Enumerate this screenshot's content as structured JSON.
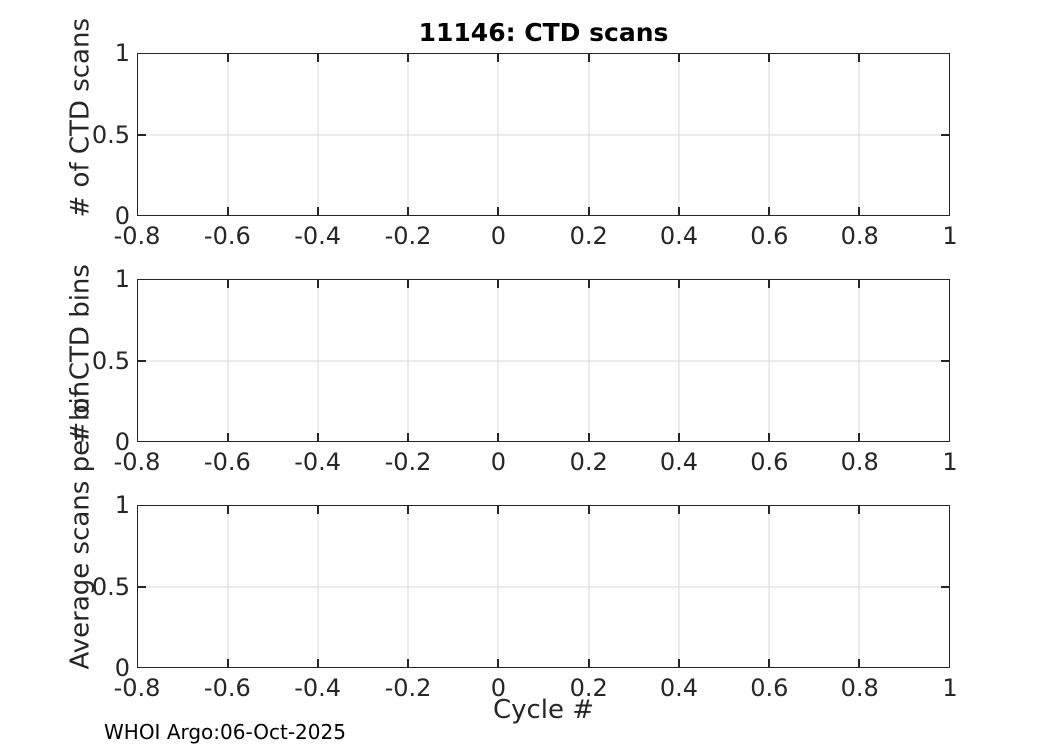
{
  "figure": {
    "title": "11146: CTD scans",
    "xlabel": "Cycle #",
    "footer": "WHOI Argo:06-Oct-2025"
  },
  "colors": {
    "background": "#ffffff",
    "axis": "#262626",
    "grid": "#d9dadb",
    "title": "#000000"
  },
  "xaxis": {
    "lim": [
      -0.8,
      1
    ],
    "ticks": [
      -0.8,
      -0.6,
      -0.4,
      -0.2,
      0,
      0.2,
      0.4,
      0.6,
      0.8,
      1
    ],
    "ticklabels": [
      "-0.8",
      "-0.6",
      "-0.4",
      "-0.2",
      "0",
      "0.2",
      "0.4",
      "0.6",
      "0.8",
      "1"
    ]
  },
  "yaxis": {
    "lim": [
      0,
      1
    ],
    "ticks": [
      0,
      0.5,
      1
    ],
    "ticklabels": [
      "0",
      "0.5",
      "1"
    ]
  },
  "subplots": [
    {
      "ylabel": "# of CTD scans"
    },
    {
      "ylabel": "# of CTD bins"
    },
    {
      "ylabel": "Average scans per bin"
    }
  ],
  "chart_data": [
    {
      "type": "line",
      "title": "11146: CTD scans",
      "xlabel": "",
      "ylabel": "# of CTD scans",
      "xlim": [
        -0.8,
        1
      ],
      "ylim": [
        0,
        1
      ],
      "xticks": [
        -0.8,
        -0.6,
        -0.4,
        -0.2,
        0,
        0.2,
        0.4,
        0.6,
        0.8,
        1
      ],
      "yticks": [
        0,
        0.5,
        1
      ],
      "grid": true,
      "legend": false,
      "series": []
    },
    {
      "type": "line",
      "title": "",
      "xlabel": "",
      "ylabel": "# of CTD bins",
      "xlim": [
        -0.8,
        1
      ],
      "ylim": [
        0,
        1
      ],
      "xticks": [
        -0.8,
        -0.6,
        -0.4,
        -0.2,
        0,
        0.2,
        0.4,
        0.6,
        0.8,
        1
      ],
      "yticks": [
        0,
        0.5,
        1
      ],
      "grid": true,
      "legend": false,
      "series": []
    },
    {
      "type": "line",
      "title": "",
      "xlabel": "Cycle #",
      "ylabel": "Average scans per bin",
      "xlim": [
        -0.8,
        1
      ],
      "ylim": [
        0,
        1
      ],
      "xticks": [
        -0.8,
        -0.6,
        -0.4,
        -0.2,
        0,
        0.2,
        0.4,
        0.6,
        0.8,
        1
      ],
      "yticks": [
        0,
        0.5,
        1
      ],
      "grid": true,
      "legend": false,
      "series": []
    }
  ]
}
